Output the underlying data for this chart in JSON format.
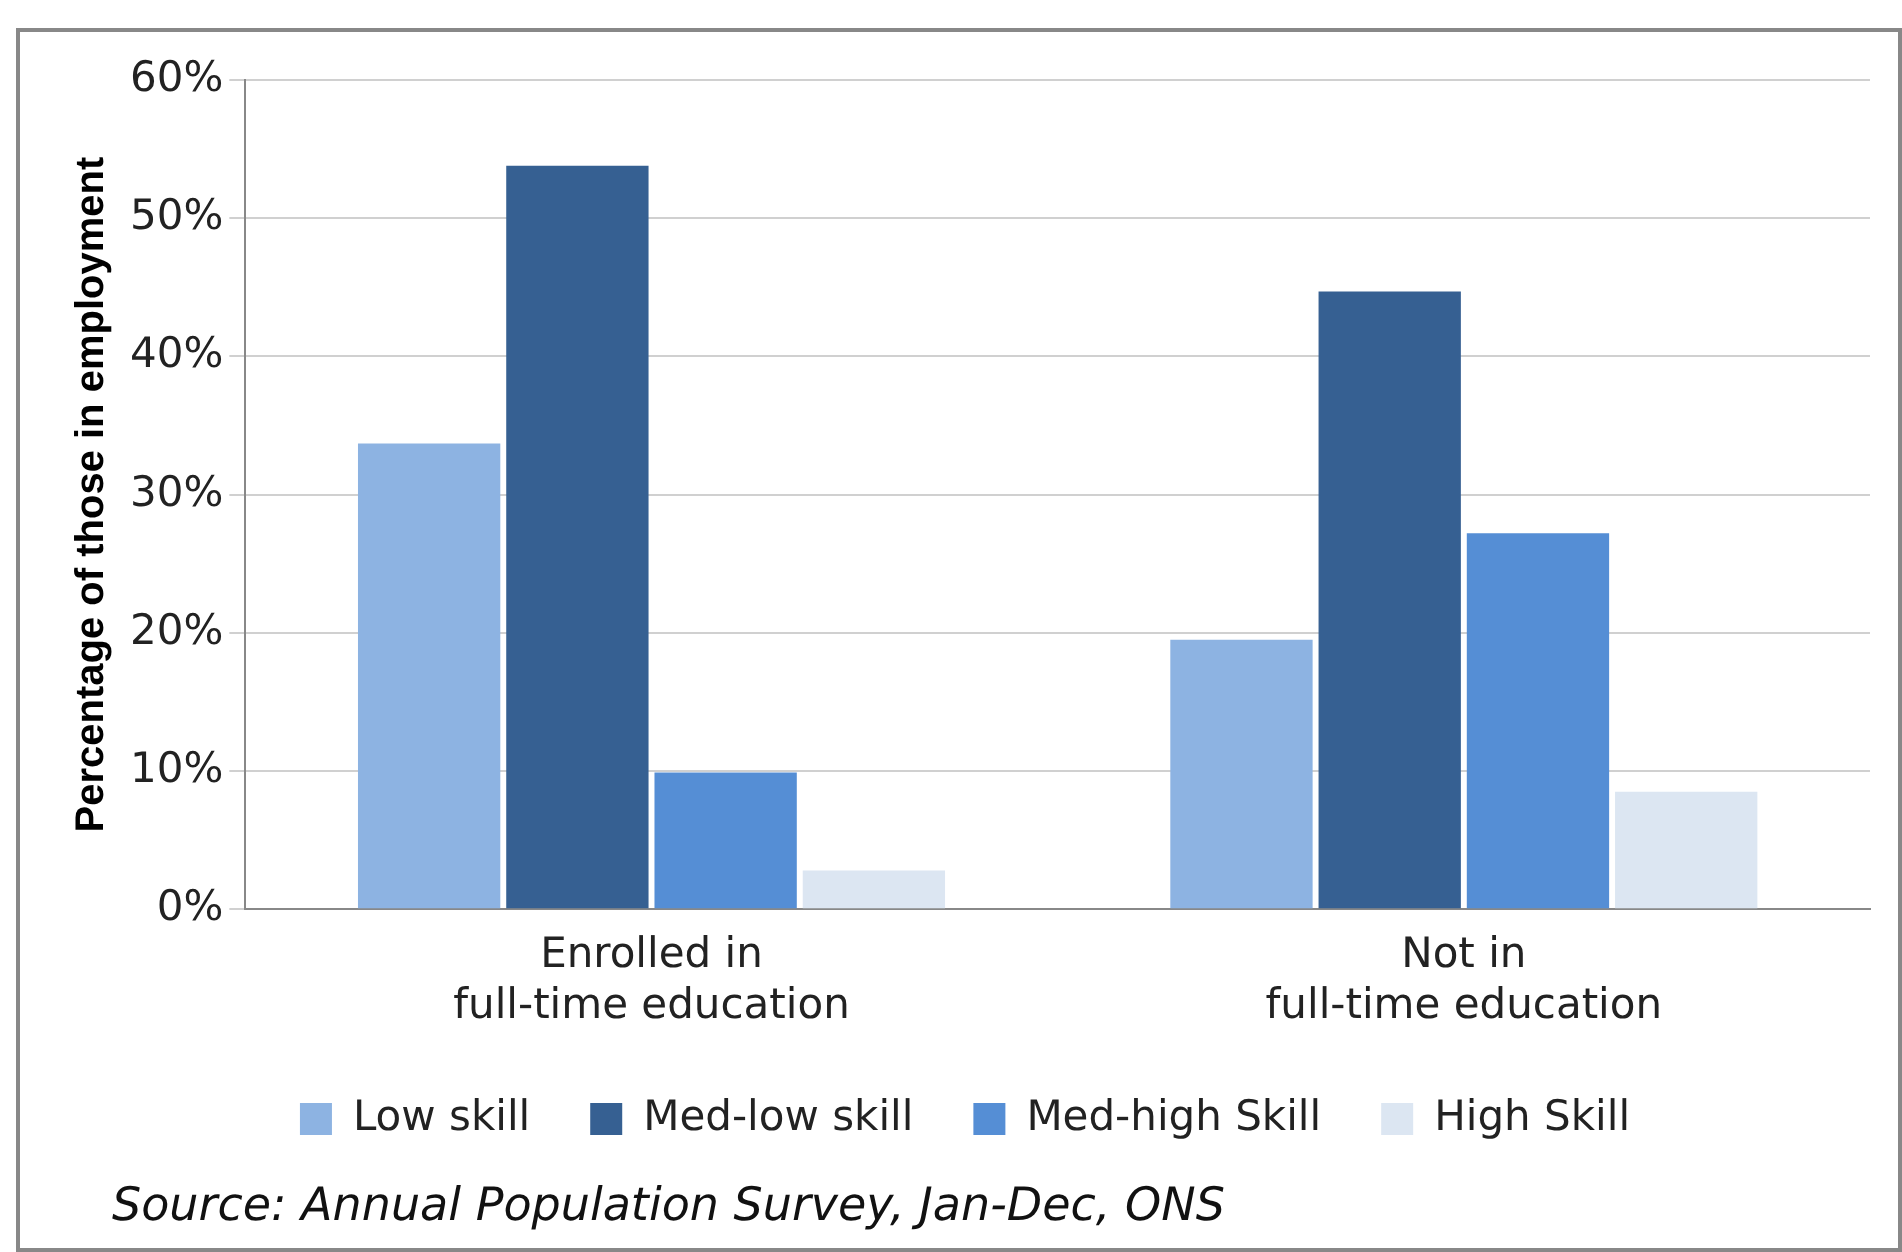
{
  "chart_data": {
    "type": "bar",
    "ylabel": "Percentage of those in employment",
    "categories": [
      "Enrolled in full-time education",
      "Not in full-time education"
    ],
    "series": [
      {
        "name": "Low skill",
        "color": "#8db3e2",
        "values": [
          33.7,
          19.5
        ]
      },
      {
        "name": "Med-low skill",
        "color": "#366092",
        "values": [
          53.8,
          44.7
        ]
      },
      {
        "name": "Med-high Skill",
        "color": "#558ed5",
        "values": [
          9.9,
          27.2
        ]
      },
      {
        "name": "High Skill",
        "color": "#dce6f2",
        "values": [
          2.8,
          8.5
        ]
      }
    ],
    "ylim": [
      0,
      60
    ],
    "yticks": [
      {
        "value": 0,
        "label": "0%"
      },
      {
        "value": 10,
        "label": "10%"
      },
      {
        "value": 20,
        "label": "20%"
      },
      {
        "value": 30,
        "label": "30%"
      },
      {
        "value": 40,
        "label": "40%"
      },
      {
        "value": 50,
        "label": "50%"
      },
      {
        "value": 60,
        "label": "60%"
      }
    ],
    "grid": "y",
    "legend": "bottom",
    "annotations": [
      "Source: Annual Population Survey, Jan-Dec, ONS"
    ]
  }
}
